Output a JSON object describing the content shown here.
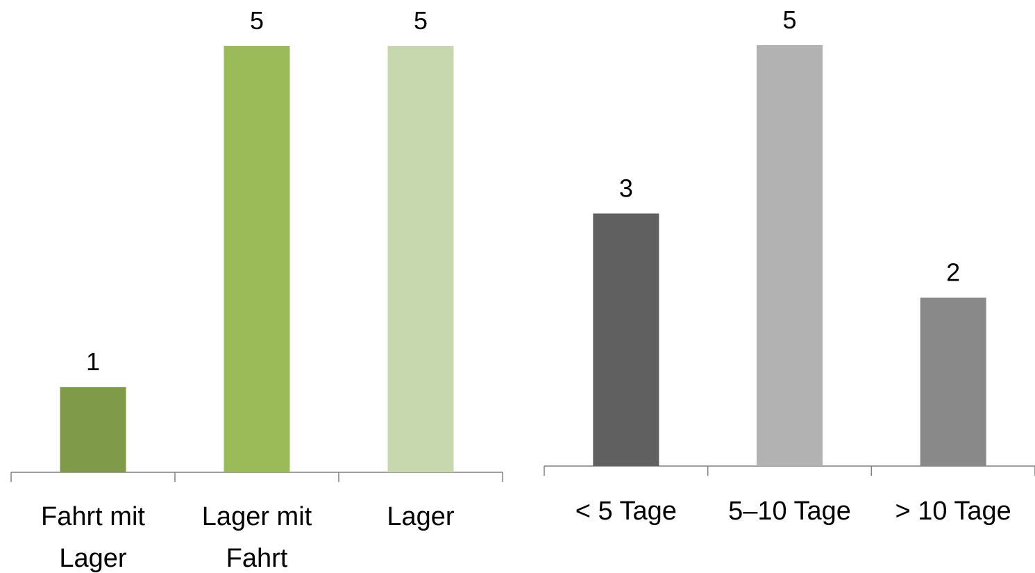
{
  "chart_data": [
    {
      "type": "bar",
      "title": "",
      "xlabel": "",
      "ylabel": "",
      "categories": [
        [
          "Fahrt mit",
          "Lager"
        ],
        [
          "Lager mit",
          "Fahrt"
        ],
        [
          "Lager"
        ]
      ],
      "values": [
        1,
        5,
        5
      ],
      "data_labels": [
        "1",
        "5",
        "5"
      ],
      "colors": [
        "#7f9a48",
        "#9bbb59",
        "#c8d8ae"
      ],
      "ylim": [
        0,
        5
      ],
      "grid": false,
      "legend": "none"
    },
    {
      "type": "bar",
      "title": "",
      "xlabel": "",
      "ylabel": "",
      "categories": [
        [
          "< 5 Tage"
        ],
        [
          "5–10 Tage"
        ],
        [
          "> 10 Tage"
        ]
      ],
      "values": [
        3,
        5,
        2
      ],
      "data_labels": [
        "3",
        "5",
        "2"
      ],
      "colors": [
        "#606060",
        "#b2b2b2",
        "#898989"
      ],
      "ylim": [
        0,
        5
      ],
      "grid": false,
      "legend": "none"
    }
  ]
}
